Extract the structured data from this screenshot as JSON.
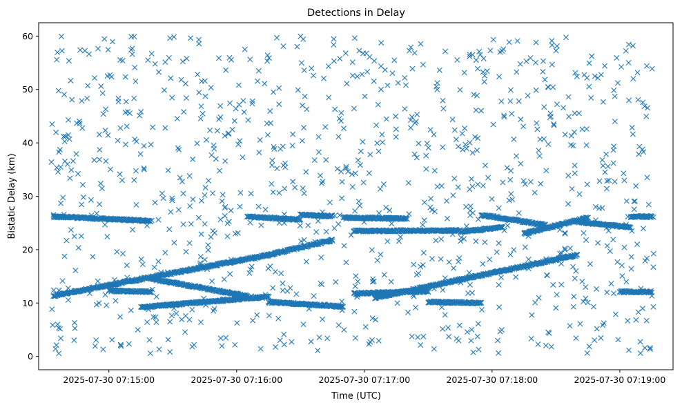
{
  "chart_data": {
    "type": "scatter",
    "title": "Detections in Delay",
    "xlabel": "Time (UTC)",
    "ylabel": "Bistatic Delay (km)",
    "xlim": [
      "2025-07-30 07:14:27",
      "2025-07-30 07:19:25"
    ],
    "ylim": [
      -2.5,
      62.5
    ],
    "x_ticks": [
      "2025-07-30 07:15:00",
      "2025-07-30 07:16:00",
      "2025-07-30 07:17:00",
      "2025-07-30 07:18:00",
      "2025-07-30 07:19:00"
    ],
    "y_ticks": [
      0,
      10,
      20,
      30,
      40,
      50,
      60
    ],
    "marker": "x",
    "color": "#1f77b4",
    "grid": false,
    "series": [
      {
        "name": "",
        "tracks": [
          {
            "from": [
              "2025-07-30 07:14:34",
              26.2
            ],
            "to": [
              "2025-07-30 07:15:20",
              25.4
            ]
          },
          {
            "from": [
              "2025-07-30 07:14:34",
              11.4
            ],
            "to": [
              "2025-07-30 07:16:15",
              19.0
            ]
          },
          {
            "from": [
              "2025-07-30 07:16:15",
              19.0
            ],
            "to": [
              "2025-07-30 07:16:45",
              21.8
            ]
          },
          {
            "from": [
              "2025-07-30 07:15:00",
              12.3
            ],
            "to": [
              "2025-07-30 07:15:20",
              12.1
            ]
          },
          {
            "from": [
              "2025-07-30 07:15:20",
              14.5
            ],
            "to": [
              "2025-07-30 07:16:05",
              11.3
            ]
          },
          {
            "from": [
              "2025-07-30 07:15:15",
              9.2
            ],
            "to": [
              "2025-07-30 07:16:15",
              11.2
            ]
          },
          {
            "from": [
              "2025-07-30 07:16:05",
              26.2
            ],
            "to": [
              "2025-07-30 07:16:30",
              25.6
            ]
          },
          {
            "from": [
              "2025-07-30 07:16:30",
              26.5
            ],
            "to": [
              "2025-07-30 07:16:45",
              26.3
            ]
          },
          {
            "from": [
              "2025-07-30 07:16:50",
              26.0
            ],
            "to": [
              "2025-07-30 07:17:20",
              25.8
            ]
          },
          {
            "from": [
              "2025-07-30 07:16:15",
              10.2
            ],
            "to": [
              "2025-07-30 07:16:50",
              9.3
            ]
          },
          {
            "from": [
              "2025-07-30 07:16:55",
              11.8
            ],
            "to": [
              "2025-07-30 07:17:30",
              12.2
            ]
          },
          {
            "from": [
              "2025-07-30 07:16:55",
              23.5
            ],
            "to": [
              "2025-07-30 07:17:45",
              23.6
            ]
          },
          {
            "from": [
              "2025-07-30 07:17:05",
              11.0
            ],
            "to": [
              "2025-07-30 07:18:40",
              19.0
            ]
          },
          {
            "from": [
              "2025-07-30 07:17:30",
              10.2
            ],
            "to": [
              "2025-07-30 07:17:55",
              10.0
            ]
          },
          {
            "from": [
              "2025-07-30 07:17:45",
              23.3
            ],
            "to": [
              "2025-07-30 07:18:05",
              24.2
            ]
          },
          {
            "from": [
              "2025-07-30 07:17:55",
              26.5
            ],
            "to": [
              "2025-07-30 07:18:25",
              24.6
            ]
          },
          {
            "from": [
              "2025-07-30 07:18:15",
              23.0
            ],
            "to": [
              "2025-07-30 07:18:45",
              26.0
            ]
          },
          {
            "from": [
              "2025-07-30 07:18:40",
              25.2
            ],
            "to": [
              "2025-07-30 07:19:05",
              24.2
            ]
          },
          {
            "from": [
              "2025-07-30 07:19:00",
              12.1
            ],
            "to": [
              "2025-07-30 07:19:15",
              12.1
            ]
          },
          {
            "from": [
              "2025-07-30 07:19:05",
              26.2
            ],
            "to": [
              "2025-07-30 07:19:15",
              26.2
            ]
          }
        ],
        "scattered_detections": {
          "x_range": [
            "2025-07-30 07:14:33",
            "2025-07-30 07:19:16"
          ],
          "y_range": [
            0.5,
            60.0
          ]
        }
      }
    ]
  }
}
